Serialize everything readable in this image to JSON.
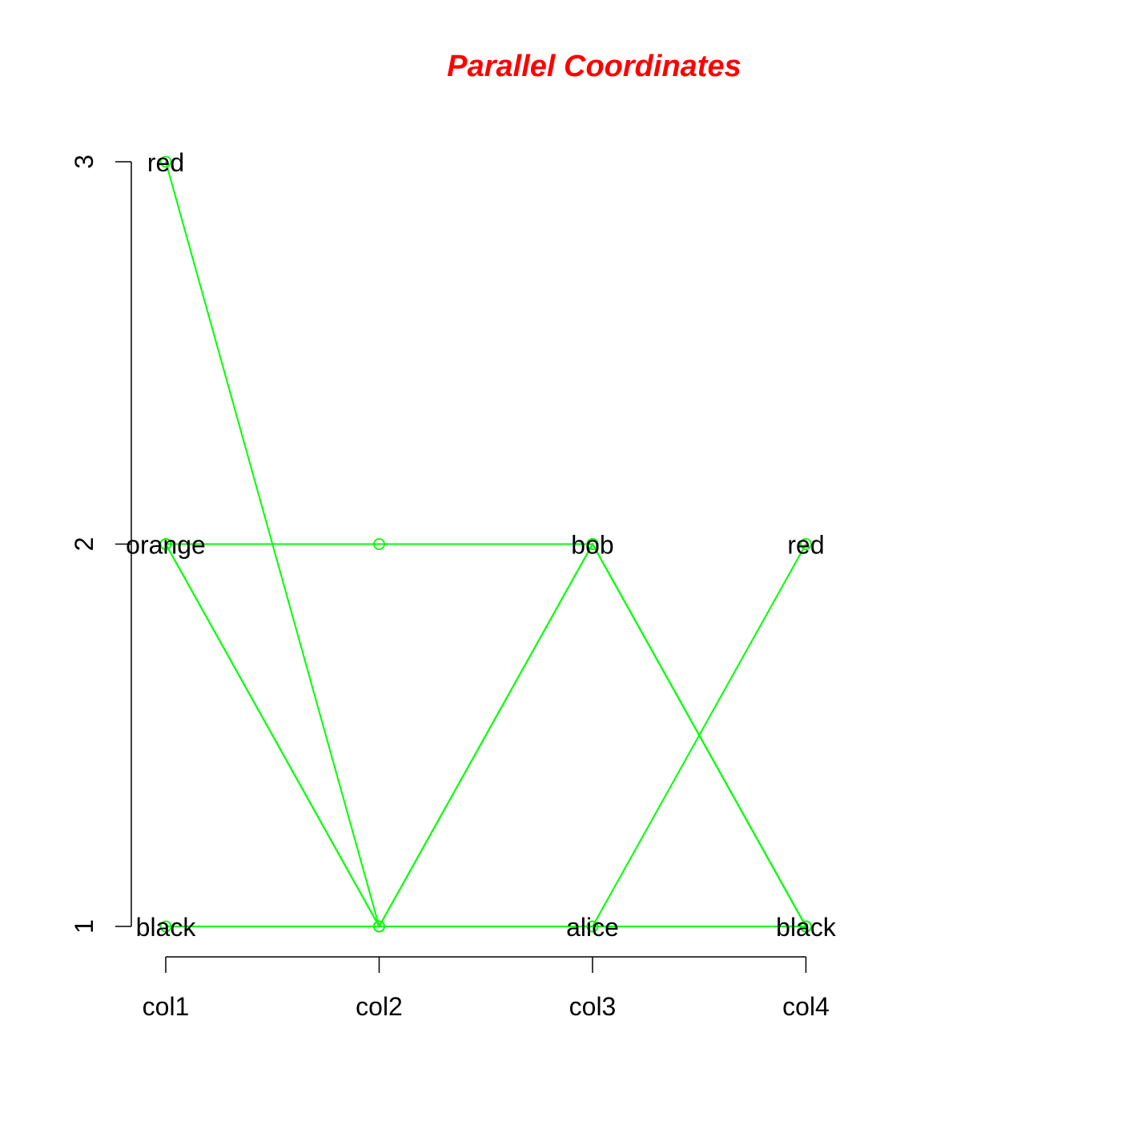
{
  "chart_data": {
    "type": "parallel-coordinates",
    "title": "Parallel Coordinates",
    "title_color": "#ff0000",
    "line_color": "#00ff00",
    "dimensions": [
      "col1",
      "col2",
      "col3",
      "col4"
    ],
    "y_ticks": [
      "1",
      "2",
      "3"
    ],
    "ylim": [
      1,
      3
    ],
    "level_labels": [
      [
        {
          "label": "black",
          "value": 1
        },
        {
          "label": "orange",
          "value": 2
        },
        {
          "label": "red",
          "value": 3
        }
      ],
      [],
      [
        {
          "label": "alice",
          "value": 1
        },
        {
          "label": "bob",
          "value": 2
        }
      ],
      [
        {
          "label": "black",
          "value": 1
        },
        {
          "label": "red",
          "value": 2
        }
      ]
    ],
    "records": [
      [
        2,
        1,
        2,
        1
      ],
      [
        2,
        1,
        2,
        1
      ],
      [
        3,
        1,
        1,
        2
      ],
      [
        1,
        1,
        1,
        1
      ],
      [
        2,
        2,
        2,
        1
      ]
    ]
  }
}
